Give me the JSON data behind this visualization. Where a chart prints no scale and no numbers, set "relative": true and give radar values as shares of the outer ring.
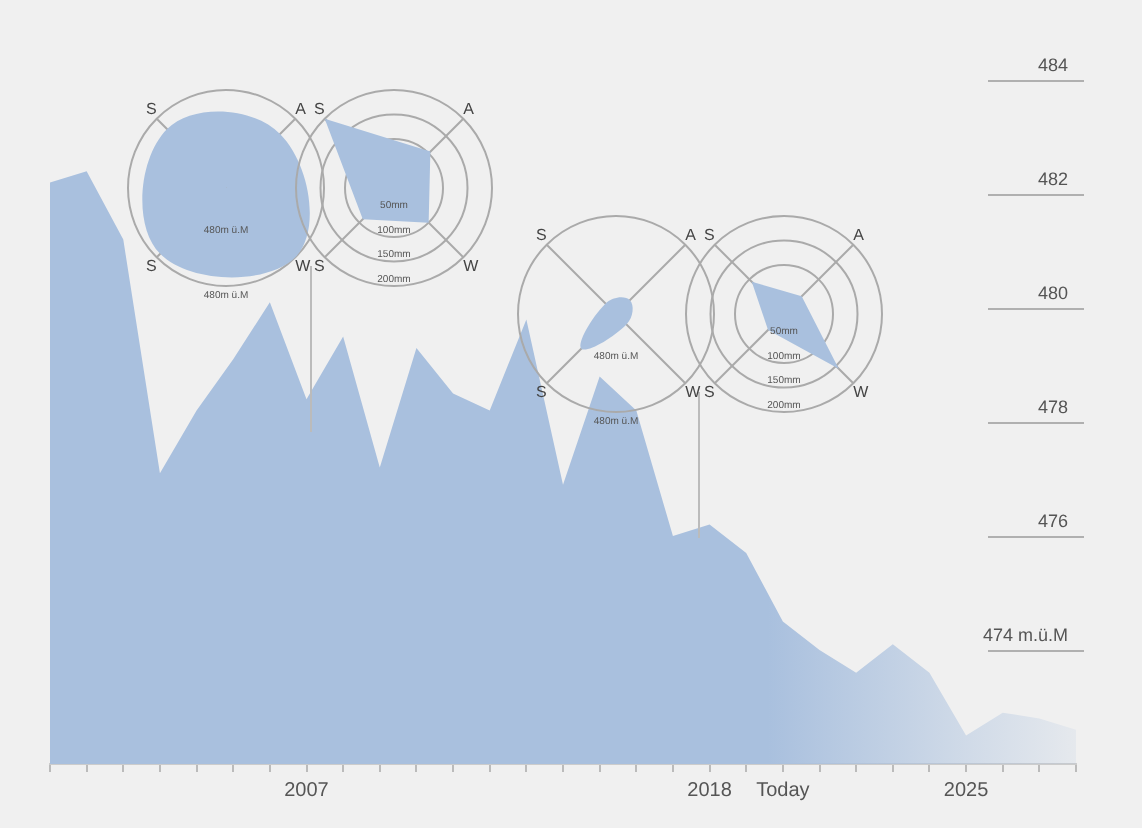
{
  "chart_data": [
    {
      "type": "area",
      "categories": [
        null,
        null,
        null,
        null,
        null,
        null,
        null,
        "2007",
        null,
        null,
        null,
        null,
        null,
        null,
        null,
        null,
        null,
        null,
        "2018",
        null,
        "Today",
        null,
        null,
        null,
        null,
        "2025",
        null,
        null,
        null
      ],
      "series": [
        {
          "color": "#a9c0de",
          "values": [
            482.2,
            482.4,
            481.2,
            477.1,
            478.2,
            479.1,
            480.1,
            478.4,
            479.5,
            477.2,
            479.3,
            478.5,
            478.2,
            479.8,
            476.9,
            478.8,
            478.2,
            476.0,
            476.2,
            475.7,
            474.5,
            474.0,
            473.6,
            474.1,
            473.6,
            472.5,
            472.9,
            472.8,
            472.6
          ]
        }
      ],
      "ylim": [
        472,
        484
      ],
      "yticks": [
        {
          "value": 474,
          "label": "474 m.ü.M"
        },
        476,
        478,
        480,
        482,
        484
      ]
    },
    {
      "type": "radar",
      "categories": [
        "A",
        "W",
        "S",
        "S"
      ],
      "relative": true,
      "series": [
        {
          "color": "#a9c0de",
          "values": [
            0.78,
            1,
            0.95,
            0.85
          ]
        }
      ],
      "annotations": [
        "480m ü.M",
        "480m ü.M"
      ]
    },
    {
      "type": "radar",
      "categories": [
        "A",
        "W",
        "S",
        "S"
      ],
      "series": [
        {
          "color": "#a9c0de",
          "values": [
            105,
            100,
            90,
            200
          ]
        }
      ],
      "ylim": [
        0,
        200
      ],
      "yticks": [
        {
          "value": 50,
          "label": "50mm"
        },
        {
          "value": 100,
          "label": "100mm"
        },
        {
          "value": 150,
          "label": "150mm"
        },
        {
          "value": 200,
          "label": "200mm"
        }
      ]
    },
    {
      "type": "radar",
      "categories": [
        "A",
        "W",
        "S",
        "S"
      ],
      "relative": true,
      "series": [
        {
          "color": "#a9c0de",
          "values": [
            0.2,
            0.15,
            0.5,
            0.15
          ]
        }
      ],
      "annotations": [
        "480m ü.M",
        "480m ü.M"
      ]
    },
    {
      "type": "radar",
      "categories": [
        "A",
        "W",
        "S",
        "S"
      ],
      "series": [
        {
          "color": "#a9c0de",
          "values": [
            51,
            158,
            46,
            93
          ]
        }
      ],
      "ylim": [
        0,
        200
      ],
      "yticks": [
        {
          "value": 50,
          "label": "50mm"
        },
        {
          "value": 100,
          "label": "100mm"
        },
        {
          "value": 150,
          "label": "150mm"
        },
        {
          "value": 200,
          "label": "200mm"
        }
      ]
    }
  ]
}
